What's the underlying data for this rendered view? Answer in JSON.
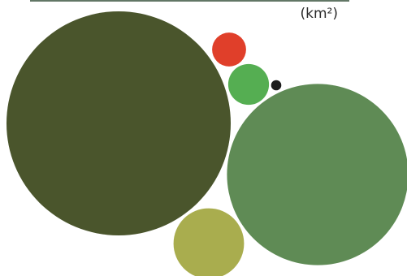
{
  "chart_data": {
    "type": "bubble",
    "unit_label": "(km²)",
    "colors": {
      "top_rule": "#2f4a34",
      "unit_text": "#2b2b2b"
    },
    "bubbles": [
      {
        "color": "#4a552c",
        "relative_area": 1.0
      },
      {
        "color": "#5f8b55",
        "relative_area": 0.654
      },
      {
        "color": "#a9ad4e",
        "relative_area": 0.099
      },
      {
        "color": "#55ae52",
        "relative_area": 0.033
      },
      {
        "color": "#e03f2a",
        "relative_area": 0.023
      },
      {
        "color": "#1c1c1c",
        "relative_area": 0.0021
      }
    ]
  }
}
